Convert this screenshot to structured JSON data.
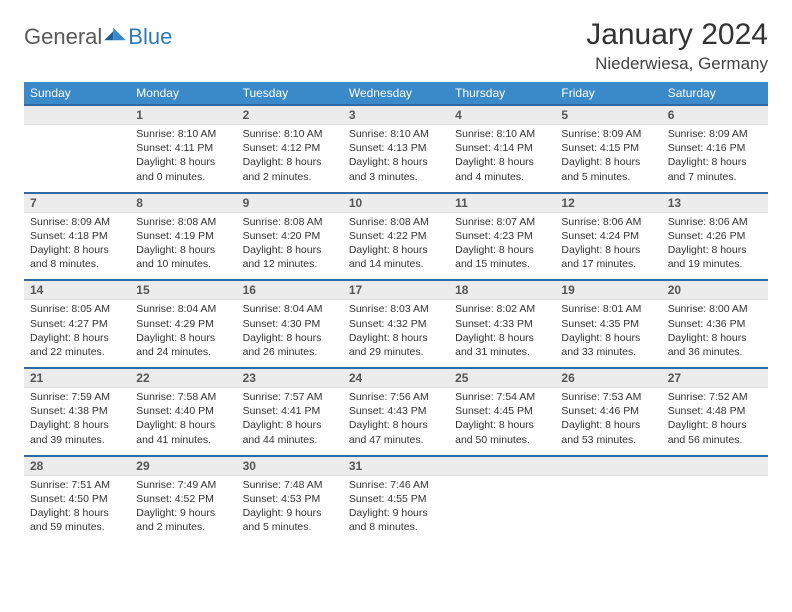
{
  "brand": {
    "prefix": "General",
    "suffix": "Blue"
  },
  "title": {
    "month": "January 2024",
    "location": "Niederwiesa, Germany"
  },
  "colors": {
    "header_bg": "#3a89c9",
    "header_text": "#ffffff",
    "rule": "#2f6aa3",
    "daynum_bg": "#ececec"
  },
  "weekdays": [
    "Sunday",
    "Monday",
    "Tuesday",
    "Wednesday",
    "Thursday",
    "Friday",
    "Saturday"
  ],
  "weeks": [
    [
      {
        "n": "",
        "sr": "",
        "ss": "",
        "d1": "",
        "d2": ""
      },
      {
        "n": "1",
        "sr": "Sunrise: 8:10 AM",
        "ss": "Sunset: 4:11 PM",
        "d1": "Daylight: 8 hours",
        "d2": "and 0 minutes."
      },
      {
        "n": "2",
        "sr": "Sunrise: 8:10 AM",
        "ss": "Sunset: 4:12 PM",
        "d1": "Daylight: 8 hours",
        "d2": "and 2 minutes."
      },
      {
        "n": "3",
        "sr": "Sunrise: 8:10 AM",
        "ss": "Sunset: 4:13 PM",
        "d1": "Daylight: 8 hours",
        "d2": "and 3 minutes."
      },
      {
        "n": "4",
        "sr": "Sunrise: 8:10 AM",
        "ss": "Sunset: 4:14 PM",
        "d1": "Daylight: 8 hours",
        "d2": "and 4 minutes."
      },
      {
        "n": "5",
        "sr": "Sunrise: 8:09 AM",
        "ss": "Sunset: 4:15 PM",
        "d1": "Daylight: 8 hours",
        "d2": "and 5 minutes."
      },
      {
        "n": "6",
        "sr": "Sunrise: 8:09 AM",
        "ss": "Sunset: 4:16 PM",
        "d1": "Daylight: 8 hours",
        "d2": "and 7 minutes."
      }
    ],
    [
      {
        "n": "7",
        "sr": "Sunrise: 8:09 AM",
        "ss": "Sunset: 4:18 PM",
        "d1": "Daylight: 8 hours",
        "d2": "and 8 minutes."
      },
      {
        "n": "8",
        "sr": "Sunrise: 8:08 AM",
        "ss": "Sunset: 4:19 PM",
        "d1": "Daylight: 8 hours",
        "d2": "and 10 minutes."
      },
      {
        "n": "9",
        "sr": "Sunrise: 8:08 AM",
        "ss": "Sunset: 4:20 PM",
        "d1": "Daylight: 8 hours",
        "d2": "and 12 minutes."
      },
      {
        "n": "10",
        "sr": "Sunrise: 8:08 AM",
        "ss": "Sunset: 4:22 PM",
        "d1": "Daylight: 8 hours",
        "d2": "and 14 minutes."
      },
      {
        "n": "11",
        "sr": "Sunrise: 8:07 AM",
        "ss": "Sunset: 4:23 PM",
        "d1": "Daylight: 8 hours",
        "d2": "and 15 minutes."
      },
      {
        "n": "12",
        "sr": "Sunrise: 8:06 AM",
        "ss": "Sunset: 4:24 PM",
        "d1": "Daylight: 8 hours",
        "d2": "and 17 minutes."
      },
      {
        "n": "13",
        "sr": "Sunrise: 8:06 AM",
        "ss": "Sunset: 4:26 PM",
        "d1": "Daylight: 8 hours",
        "d2": "and 19 minutes."
      }
    ],
    [
      {
        "n": "14",
        "sr": "Sunrise: 8:05 AM",
        "ss": "Sunset: 4:27 PM",
        "d1": "Daylight: 8 hours",
        "d2": "and 22 minutes."
      },
      {
        "n": "15",
        "sr": "Sunrise: 8:04 AM",
        "ss": "Sunset: 4:29 PM",
        "d1": "Daylight: 8 hours",
        "d2": "and 24 minutes."
      },
      {
        "n": "16",
        "sr": "Sunrise: 8:04 AM",
        "ss": "Sunset: 4:30 PM",
        "d1": "Daylight: 8 hours",
        "d2": "and 26 minutes."
      },
      {
        "n": "17",
        "sr": "Sunrise: 8:03 AM",
        "ss": "Sunset: 4:32 PM",
        "d1": "Daylight: 8 hours",
        "d2": "and 29 minutes."
      },
      {
        "n": "18",
        "sr": "Sunrise: 8:02 AM",
        "ss": "Sunset: 4:33 PM",
        "d1": "Daylight: 8 hours",
        "d2": "and 31 minutes."
      },
      {
        "n": "19",
        "sr": "Sunrise: 8:01 AM",
        "ss": "Sunset: 4:35 PM",
        "d1": "Daylight: 8 hours",
        "d2": "and 33 minutes."
      },
      {
        "n": "20",
        "sr": "Sunrise: 8:00 AM",
        "ss": "Sunset: 4:36 PM",
        "d1": "Daylight: 8 hours",
        "d2": "and 36 minutes."
      }
    ],
    [
      {
        "n": "21",
        "sr": "Sunrise: 7:59 AM",
        "ss": "Sunset: 4:38 PM",
        "d1": "Daylight: 8 hours",
        "d2": "and 39 minutes."
      },
      {
        "n": "22",
        "sr": "Sunrise: 7:58 AM",
        "ss": "Sunset: 4:40 PM",
        "d1": "Daylight: 8 hours",
        "d2": "and 41 minutes."
      },
      {
        "n": "23",
        "sr": "Sunrise: 7:57 AM",
        "ss": "Sunset: 4:41 PM",
        "d1": "Daylight: 8 hours",
        "d2": "and 44 minutes."
      },
      {
        "n": "24",
        "sr": "Sunrise: 7:56 AM",
        "ss": "Sunset: 4:43 PM",
        "d1": "Daylight: 8 hours",
        "d2": "and 47 minutes."
      },
      {
        "n": "25",
        "sr": "Sunrise: 7:54 AM",
        "ss": "Sunset: 4:45 PM",
        "d1": "Daylight: 8 hours",
        "d2": "and 50 minutes."
      },
      {
        "n": "26",
        "sr": "Sunrise: 7:53 AM",
        "ss": "Sunset: 4:46 PM",
        "d1": "Daylight: 8 hours",
        "d2": "and 53 minutes."
      },
      {
        "n": "27",
        "sr": "Sunrise: 7:52 AM",
        "ss": "Sunset: 4:48 PM",
        "d1": "Daylight: 8 hours",
        "d2": "and 56 minutes."
      }
    ],
    [
      {
        "n": "28",
        "sr": "Sunrise: 7:51 AM",
        "ss": "Sunset: 4:50 PM",
        "d1": "Daylight: 8 hours",
        "d2": "and 59 minutes."
      },
      {
        "n": "29",
        "sr": "Sunrise: 7:49 AM",
        "ss": "Sunset: 4:52 PM",
        "d1": "Daylight: 9 hours",
        "d2": "and 2 minutes."
      },
      {
        "n": "30",
        "sr": "Sunrise: 7:48 AM",
        "ss": "Sunset: 4:53 PM",
        "d1": "Daylight: 9 hours",
        "d2": "and 5 minutes."
      },
      {
        "n": "31",
        "sr": "Sunrise: 7:46 AM",
        "ss": "Sunset: 4:55 PM",
        "d1": "Daylight: 9 hours",
        "d2": "and 8 minutes."
      },
      {
        "n": "",
        "sr": "",
        "ss": "",
        "d1": "",
        "d2": ""
      },
      {
        "n": "",
        "sr": "",
        "ss": "",
        "d1": "",
        "d2": ""
      },
      {
        "n": "",
        "sr": "",
        "ss": "",
        "d1": "",
        "d2": ""
      }
    ]
  ]
}
